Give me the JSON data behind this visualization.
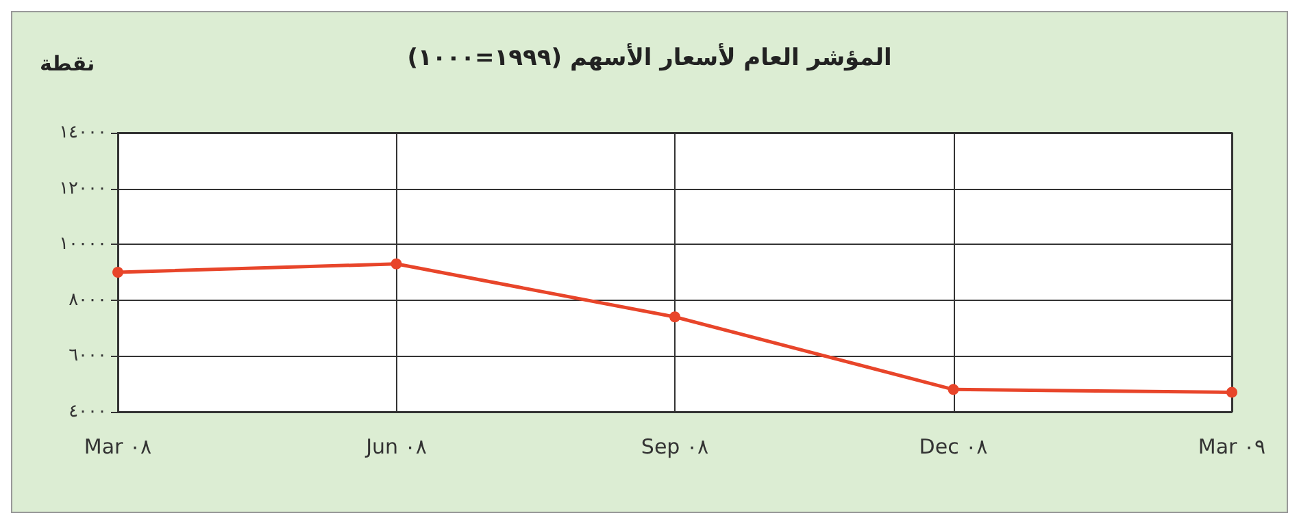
{
  "chart_data": {
    "type": "line",
    "title": "المؤشر العام لأسعار الأسهم (١٩٩٩=١٠٠٠)",
    "ylabel": "نقطة",
    "categories": [
      "Mar ٠٨",
      "Jun ٠٨",
      "Sep ٠٨",
      "Dec ٠٨",
      "Mar ٠٩"
    ],
    "series": [
      {
        "color": "#e8452a",
        "values": [
          9000,
          9300,
          7400,
          4800,
          4700
        ]
      }
    ],
    "ylim": [
      4000,
      14000
    ],
    "yticks": [
      {
        "value": 4000,
        "label": "٤٠٠٠"
      },
      {
        "value": 6000,
        "label": "٦٠٠٠"
      },
      {
        "value": 8000,
        "label": "٨٠٠٠"
      },
      {
        "value": 10000,
        "label": "١٠٠٠٠"
      },
      {
        "value": 12000,
        "label": "١٢٠٠٠"
      },
      {
        "value": 14000,
        "label": "١٤٠٠٠"
      }
    ],
    "grid": true,
    "marker": "circle",
    "line_style": "solid"
  }
}
